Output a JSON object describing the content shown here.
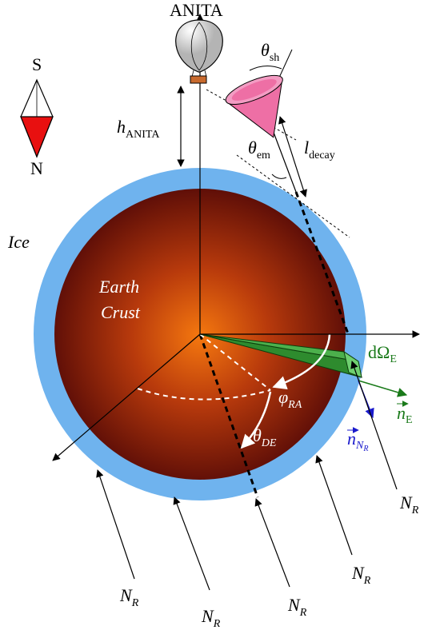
{
  "balloon_label": "ANITA",
  "compass": {
    "top": "S",
    "bottom": "N"
  },
  "ice_label": "Ice",
  "crust_label": {
    "line1": "Earth",
    "line2": "Crust"
  },
  "h_anita": {
    "sym": "h",
    "sub": "ANITA"
  },
  "theta_sh": {
    "sym": "θ",
    "sub": "sh"
  },
  "theta_em": {
    "sym": "θ",
    "sub": "em"
  },
  "l_decay": {
    "sym": "l",
    "sub": "decay"
  },
  "domega": {
    "sym": "dΩ",
    "sub": "E"
  },
  "n_e": {
    "sym": "n",
    "sub": "E"
  },
  "n_nr": {
    "sym": "n",
    "sub": "N",
    "subsub": "R"
  },
  "phi_ra": {
    "sym": "φ",
    "sub": "RA"
  },
  "theta_de": {
    "sym": "θ",
    "sub": "DE"
  },
  "flux": {
    "sym": "N",
    "sub": "R"
  },
  "colors": {
    "ice": "#6fb3ee",
    "crust_center": "#f57a14",
    "crust_edge": "#5a0c07",
    "cone": "#ee6fa5",
    "wedge": "#3a9a3a",
    "normal_green": "#1a7a1a",
    "normal_blue": "#1a1acc",
    "compass_red": "#e81010"
  }
}
